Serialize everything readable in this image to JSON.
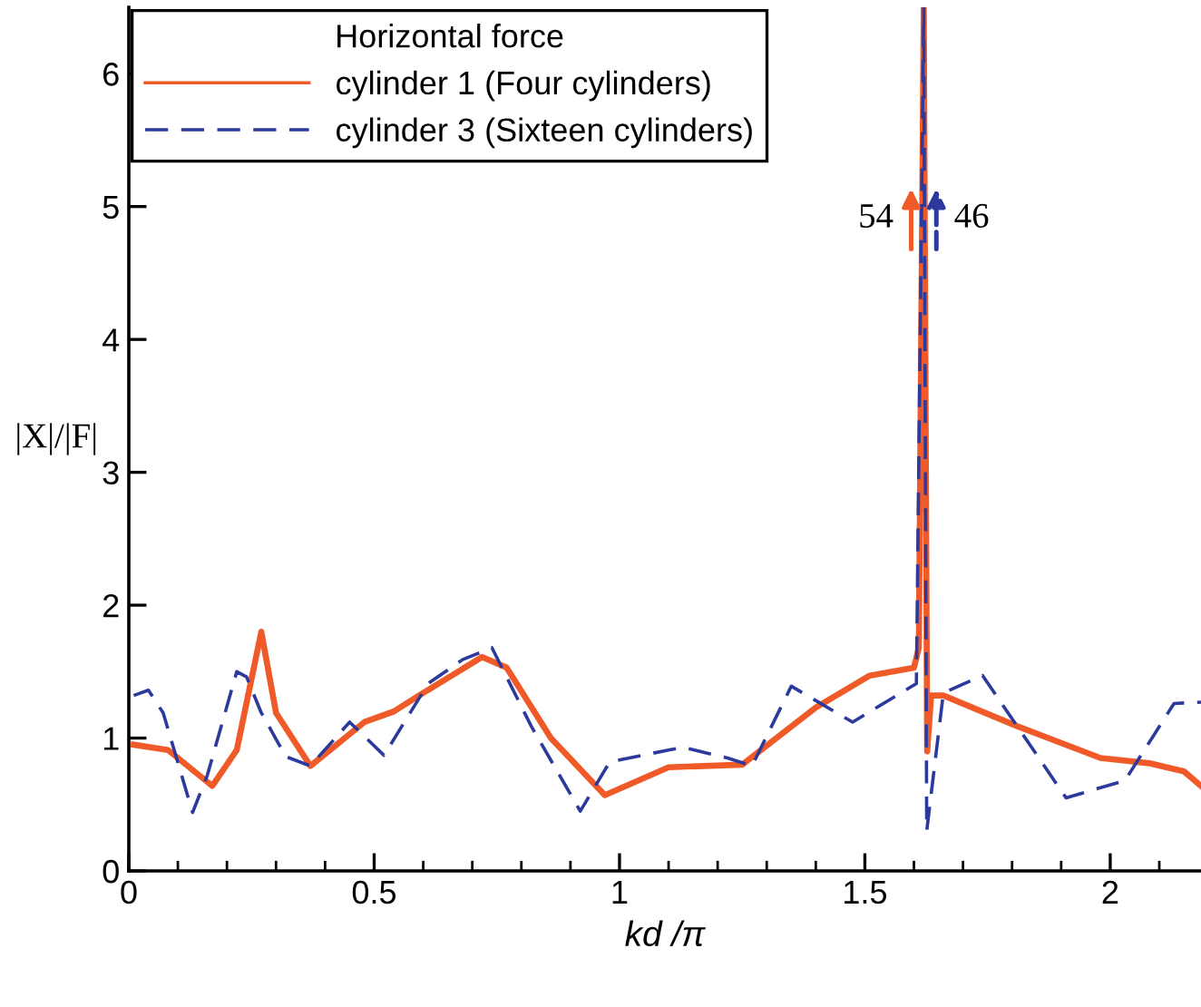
{
  "chart_data": {
    "type": "line",
    "xlabel": "kd /π",
    "ylabel": "|X|/|F|",
    "legend_title": "Horizontal force",
    "xlim": [
      0,
      2.185
    ],
    "ylim": [
      0,
      6.5
    ],
    "xticks": [
      0,
      {
        "value": 0.1,
        "label": null
      },
      {
        "value": 0.2,
        "label": null
      },
      {
        "value": 0.3,
        "label": null
      },
      {
        "value": 0.4,
        "label": null
      },
      0.5,
      {
        "value": 0.6,
        "label": null
      },
      {
        "value": 0.7,
        "label": null
      },
      {
        "value": 0.8,
        "label": null
      },
      {
        "value": 0.9,
        "label": null
      },
      1,
      {
        "value": 1.1,
        "label": null
      },
      {
        "value": 1.2,
        "label": null
      },
      {
        "value": 1.3,
        "label": null
      },
      {
        "value": 1.4,
        "label": null
      },
      1.5,
      {
        "value": 1.6,
        "label": null
      },
      {
        "value": 1.7,
        "label": null
      },
      {
        "value": 1.8,
        "label": null
      },
      {
        "value": 1.9,
        "label": null
      },
      2,
      {
        "value": 2.1,
        "label": null
      }
    ],
    "yticks": [
      0,
      1,
      2,
      3,
      4,
      5,
      6
    ],
    "grid": false,
    "legend": "top left",
    "series": [
      {
        "name": "cylinder 1 (Four cylinders)",
        "color": "#f05a28",
        "line_style": "solid",
        "x": [
          0.01,
          0.08,
          0.17,
          0.22,
          0.27,
          0.3,
          0.37,
          0.48,
          0.54,
          0.6,
          0.72,
          0.77,
          0.86,
          0.97,
          1.1,
          1.25,
          1.4,
          1.51,
          1.6,
          1.61,
          1.62,
          1.627,
          1.635,
          1.66,
          1.81,
          1.98,
          2.08,
          2.15,
          2.185
        ],
        "values": [
          0.95,
          0.91,
          0.64,
          0.91,
          1.8,
          1.19,
          0.79,
          1.12,
          1.2,
          1.34,
          1.61,
          1.53,
          1.0,
          0.57,
          0.78,
          0.8,
          1.23,
          1.47,
          1.53,
          1.68,
          6.5,
          0.9,
          1.32,
          1.32,
          1.09,
          0.85,
          0.81,
          0.75,
          0.64
        ]
      },
      {
        "name": "cylinder 3 (Sixteen cylinders)",
        "color": "#2b3a9c",
        "line_style": "dashed",
        "x": [
          0.01,
          0.04,
          0.07,
          0.13,
          0.16,
          0.22,
          0.24,
          0.27,
          0.32,
          0.37,
          0.45,
          0.52,
          0.61,
          0.68,
          0.74,
          0.82,
          0.92,
          0.98,
          1.1,
          1.13,
          1.22,
          1.27,
          1.35,
          1.475,
          1.605,
          1.62,
          1.626,
          1.66,
          1.74,
          1.91,
          2.03,
          2.13,
          2.185
        ],
        "values": [
          1.32,
          1.36,
          1.19,
          0.44,
          0.72,
          1.5,
          1.46,
          1.19,
          0.86,
          0.79,
          1.12,
          0.87,
          1.41,
          1.59,
          1.68,
          1.09,
          0.45,
          0.82,
          0.91,
          0.93,
          0.85,
          0.79,
          1.39,
          1.12,
          1.41,
          6.5,
          0.3,
          1.34,
          1.47,
          0.55,
          0.68,
          1.26,
          1.27
        ]
      }
    ],
    "annotations": [
      "54",
      "46"
    ]
  }
}
